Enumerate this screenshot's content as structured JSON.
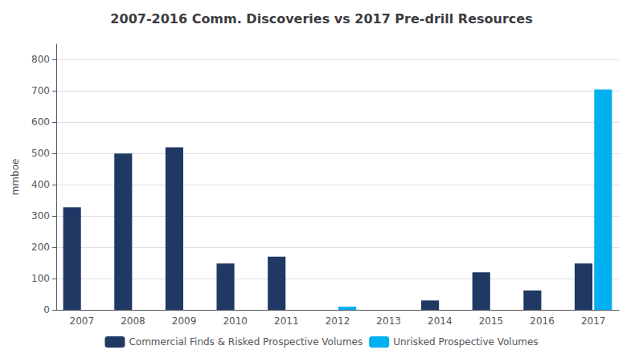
{
  "chart_data": {
    "type": "bar",
    "title": "2007-2016 Comm. Discoveries vs 2017 Pre-drill Resources",
    "ylabel": "mmboe",
    "categories": [
      "2007",
      "2008",
      "2009",
      "2010",
      "2011",
      "2012",
      "2013",
      "2014",
      "2015",
      "2016",
      "2017"
    ],
    "series": [
      {
        "name": "Commercial Finds & Risked Prospective Volumes",
        "color": "#1F3864",
        "values": [
          328,
          500,
          520,
          148,
          170,
          0,
          0,
          30,
          120,
          62,
          148
        ]
      },
      {
        "name": "Unrisked Prospective Volumes",
        "color": "#00B0F0",
        "values": [
          0,
          0,
          0,
          0,
          0,
          10,
          0,
          0,
          0,
          0,
          705
        ]
      }
    ],
    "ylim": [
      0,
      850
    ],
    "yticks": [
      0,
      100,
      200,
      300,
      400,
      500,
      600,
      700,
      800
    ],
    "grid": true,
    "legend": "bottom"
  }
}
